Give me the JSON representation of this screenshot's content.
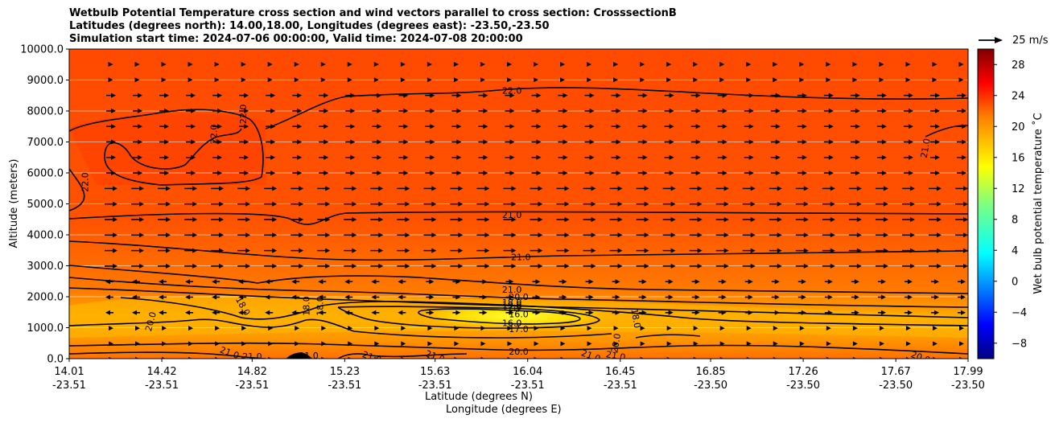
{
  "chart_data": {
    "type": "heatmap",
    "title_lines": [
      "Wetbulb Potential Temperature cross section and wind vectors parallel to cross section: CrosssectionB",
      "Latitudes (degrees north): 14.00,18.00, Longitudes (degrees east): -23.50,-23.50",
      "Simulation start time: 2024-07-06 00:00:00, Valid time: 2024-07-08 20:00:00"
    ],
    "ylabel": "Altitude (meters)",
    "xlabel_lines": [
      "Latitude (degrees N)",
      "Longitude (degrees E)"
    ],
    "ylim": [
      0,
      10000
    ],
    "y_ticks": [
      "0.0",
      "1000.0",
      "2000.0",
      "3000.0",
      "4000.0",
      "5000.0",
      "6000.0",
      "7000.0",
      "8000.0",
      "9000.0",
      "10000.0"
    ],
    "x_ticks": [
      {
        "lat": "14.01",
        "lon": "-23.51"
      },
      {
        "lat": "14.42",
        "lon": "-23.51"
      },
      {
        "lat": "14.82",
        "lon": "-23.51"
      },
      {
        "lat": "15.23",
        "lon": "-23.51"
      },
      {
        "lat": "15.63",
        "lon": "-23.51"
      },
      {
        "lat": "16.04",
        "lon": "-23.51"
      },
      {
        "lat": "16.45",
        "lon": "-23.51"
      },
      {
        "lat": "16.85",
        "lon": "-23.50"
      },
      {
        "lat": "17.26",
        "lon": "-23.50"
      },
      {
        "lat": "17.67",
        "lon": "-23.50"
      },
      {
        "lat": "17.99",
        "lon": "-23.50"
      }
    ],
    "colorbar": {
      "label": "Wet bulb potential temperature ˚C",
      "range": [
        -10,
        30
      ],
      "ticks": [
        "−8",
        "−4",
        "0",
        "4",
        "8",
        "12",
        "16",
        "20",
        "24",
        "28"
      ]
    },
    "quiver_key": "25 m/s",
    "contour_labels": [
      {
        "text": "22.0",
        "lat": 14.08,
        "alt": 5700,
        "rot": -90
      },
      {
        "text": "22.0",
        "lat": 14.65,
        "alt": 7250,
        "rot": -90
      },
      {
        "text": "22.0",
        "lat": 14.78,
        "alt": 7900,
        "rot": -90
      },
      {
        "text": "22.0",
        "lat": 15.97,
        "alt": 8660,
        "rot": 0
      },
      {
        "text": "21.0",
        "lat": 17.8,
        "alt": 6800,
        "rot": -80
      },
      {
        "text": "21.0",
        "lat": 15.97,
        "alt": 4650,
        "rot": 0
      },
      {
        "text": "21.0",
        "lat": 16.01,
        "alt": 3280,
        "rot": 0
      },
      {
        "text": "21.0",
        "lat": 15.97,
        "alt": 2230,
        "rot": 0
      },
      {
        "text": "20.0",
        "lat": 16.0,
        "alt": 2000,
        "rot": 0
      },
      {
        "text": "19.0",
        "lat": 15.97,
        "alt": 1740,
        "rot": 0
      },
      {
        "text": "18.0",
        "lat": 15.97,
        "alt": 1820,
        "rot": 0
      },
      {
        "text": "17.0",
        "lat": 15.97,
        "alt": 1680,
        "rot": 0
      },
      {
        "text": "16.0",
        "lat": 16.0,
        "alt": 1440,
        "rot": 0
      },
      {
        "text": "16.0",
        "lat": 15.97,
        "alt": 1160,
        "rot": 0
      },
      {
        "text": "17.0",
        "lat": 16.0,
        "alt": 960,
        "rot": 0
      },
      {
        "text": "18.0",
        "lat": 14.78,
        "alt": 1700,
        "rot": 60
      },
      {
        "text": "18.0",
        "lat": 15.06,
        "alt": 1700,
        "rot": -90
      },
      {
        "text": "18.0",
        "lat": 15.12,
        "alt": 1700,
        "rot": -90
      },
      {
        "text": "18.0",
        "lat": 16.52,
        "alt": 1300,
        "rot": 80
      },
      {
        "text": "20.0",
        "lat": 14.37,
        "alt": 1200,
        "rot": -75
      },
      {
        "text": "20.0",
        "lat": 16.43,
        "alt": 500,
        "rot": -80
      },
      {
        "text": "20.0",
        "lat": 16.0,
        "alt": 230,
        "rot": 0
      },
      {
        "text": "21.0",
        "lat": 14.72,
        "alt": 200,
        "rot": 20
      },
      {
        "text": "21.0",
        "lat": 14.82,
        "alt": 80,
        "rot": 0
      },
      {
        "text": "21.0",
        "lat": 15.07,
        "alt": 100,
        "rot": 0
      },
      {
        "text": "21.0",
        "lat": 15.35,
        "alt": 50,
        "rot": 20
      },
      {
        "text": "21.0",
        "lat": 15.63,
        "alt": 80,
        "rot": 20
      },
      {
        "text": "21.0",
        "lat": 16.32,
        "alt": 100,
        "rot": 20
      },
      {
        "text": "21.0",
        "lat": 16.43,
        "alt": 100,
        "rot": 10
      },
      {
        "text": "20.0",
        "lat": 17.78,
        "alt": 50,
        "rot": 20
      }
    ]
  }
}
